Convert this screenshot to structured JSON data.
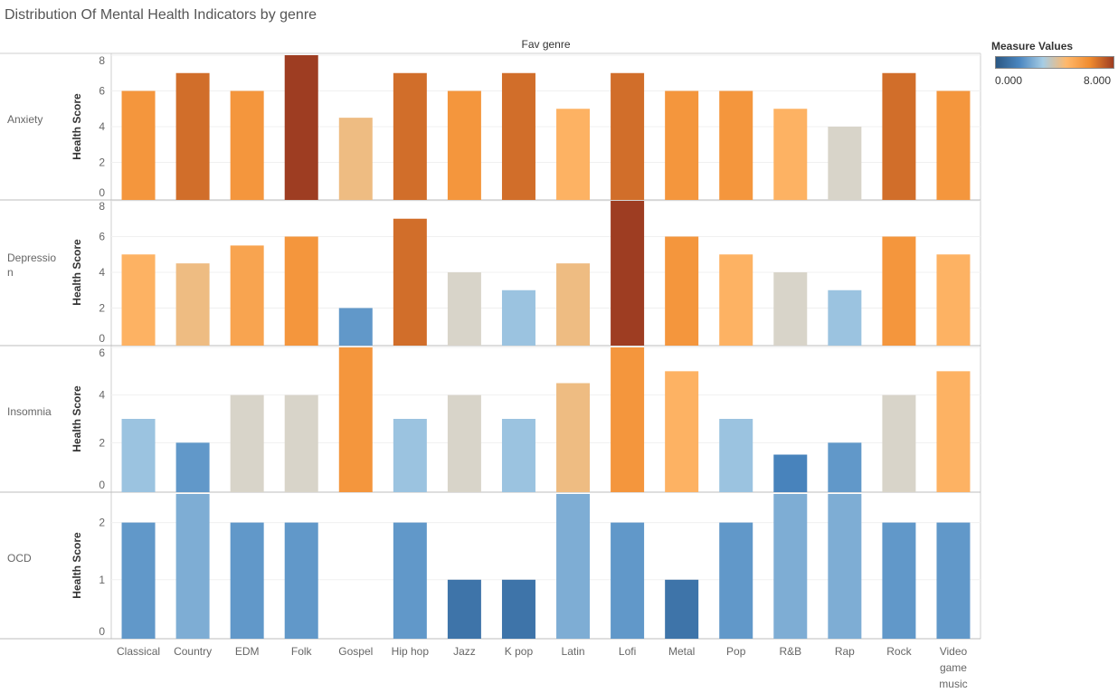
{
  "title": "Distribution Of Mental Health Indicators by genre",
  "legend": {
    "title": "Measure Values",
    "min_label": "0.000",
    "max_label": "8.000",
    "gradient_stops": [
      "#2a5783",
      "#4a86c0",
      "#a6cce4",
      "#ffb86b",
      "#f08b2e",
      "#9e3d22"
    ]
  },
  "chart_data": {
    "type": "bar",
    "column_header": "Fav genre",
    "ylabel": "Health Score",
    "color_range": [
      0,
      8
    ],
    "categories": [
      "Classical",
      "Country",
      "EDM",
      "Folk",
      "Gospel",
      "Hip hop",
      "Jazz",
      "K pop",
      "Latin",
      "Lofi",
      "Metal",
      "Pop",
      "R&B",
      "Rap",
      "Rock",
      "Video game music"
    ],
    "category_display_lines": [
      [
        "Classical"
      ],
      [
        "Country"
      ],
      [
        "EDM"
      ],
      [
        "Folk"
      ],
      [
        "Gospel"
      ],
      [
        "Hip hop"
      ],
      [
        "Jazz"
      ],
      [
        "K pop"
      ],
      [
        "Latin"
      ],
      [
        "Lofi"
      ],
      [
        "Metal"
      ],
      [
        "Pop"
      ],
      [
        "R&B"
      ],
      [
        "Rap"
      ],
      [
        "Rock"
      ],
      [
        "Video",
        "game",
        "music"
      ]
    ],
    "series": [
      {
        "name": "Anxiety",
        "name_lines": [
          "Anxiety"
        ],
        "ylim": [
          0,
          8
        ],
        "ticks": [
          0,
          2,
          4,
          6,
          8
        ],
        "values": [
          6,
          7,
          6,
          8,
          4.5,
          7,
          6,
          7,
          5,
          7,
          6,
          6,
          5,
          4,
          7,
          6
        ]
      },
      {
        "name": "Depression",
        "name_lines": [
          "Depressio",
          "n"
        ],
        "ylim": [
          0,
          8
        ],
        "ticks": [
          0,
          2,
          4,
          6,
          8
        ],
        "values": [
          5,
          4.5,
          5.5,
          6,
          2,
          7,
          4,
          3,
          4.5,
          8,
          6,
          5,
          4,
          3,
          6,
          5
        ]
      },
      {
        "name": "Insomnia",
        "name_lines": [
          "Insomnia"
        ],
        "ylim": [
          0,
          6
        ],
        "ticks": [
          0,
          2,
          4,
          6
        ],
        "values": [
          3,
          2,
          4,
          4,
          6,
          3,
          4,
          3,
          4.5,
          6,
          5,
          3,
          1.5,
          2,
          4,
          5
        ]
      },
      {
        "name": "OCD",
        "name_lines": [
          "OCD"
        ],
        "ylim": [
          0,
          2.5
        ],
        "ticks": [
          0,
          1,
          2
        ],
        "values": [
          2,
          2.5,
          2,
          2,
          0,
          2,
          1,
          1,
          2.5,
          2,
          1,
          2,
          2.5,
          2.5,
          2,
          2
        ]
      }
    ]
  }
}
